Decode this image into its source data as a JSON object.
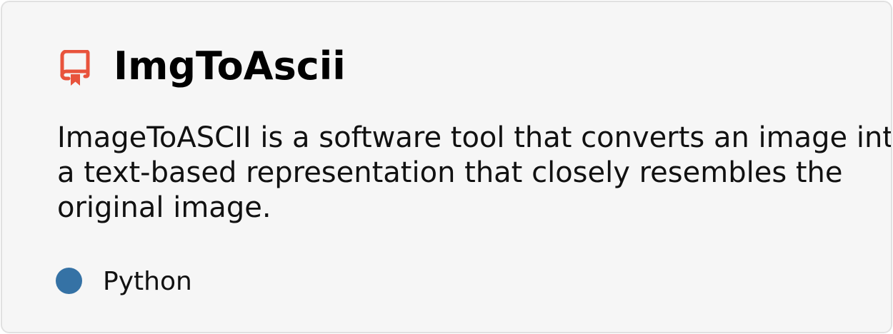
{
  "repo": {
    "icon": "repo-icon",
    "icon_color": "#e8533c",
    "name": "ImgToAscii",
    "description": "ImageToASCII is a software tool that converts an image into\na text-based representation that closely resembles the\noriginal image."
  },
  "language": {
    "name": "Python",
    "color": "#3572a5"
  }
}
